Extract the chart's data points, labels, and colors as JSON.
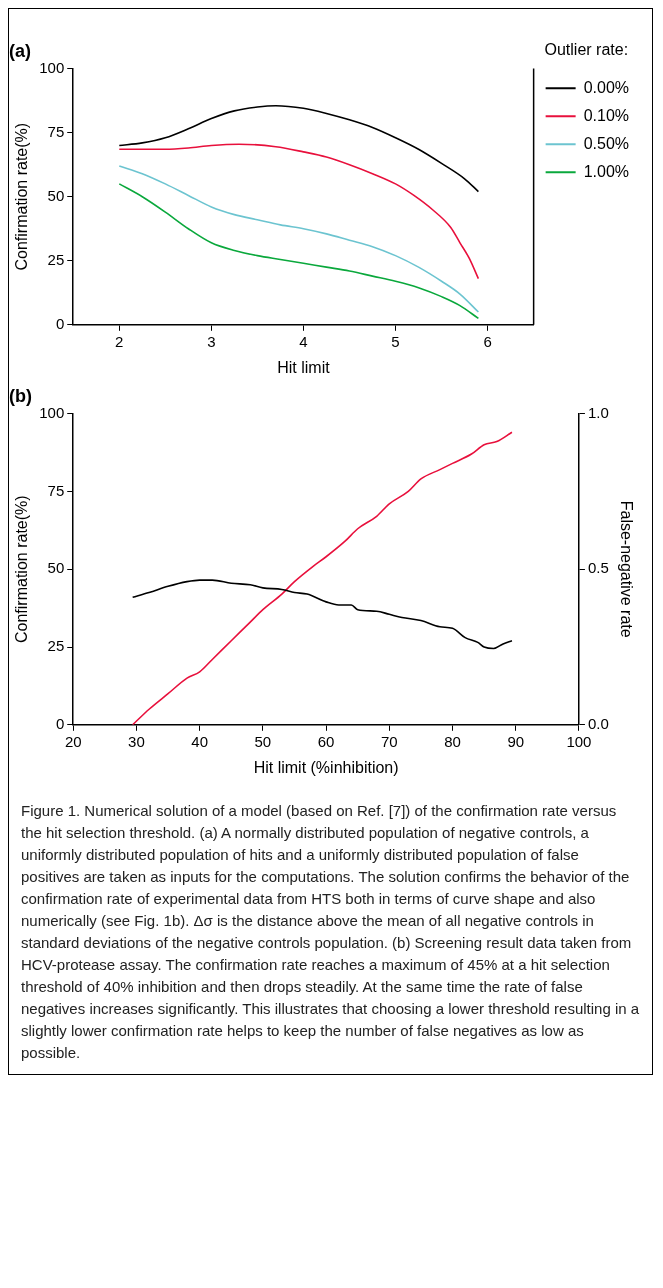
{
  "chart_data": [
    {
      "type": "line",
      "title": "(a)",
      "xlabel": "Hit limit",
      "ylabel": "Confirmation rate(%)",
      "legend_title": "Outlier rate:",
      "legend": "right",
      "grid": false,
      "xlim": [
        1.5,
        6.5
      ],
      "xticks": [
        2,
        3,
        4,
        5,
        6
      ],
      "ylim": [
        0,
        100
      ],
      "yticks": [
        0,
        25,
        50,
        75,
        100
      ],
      "series": [
        {
          "name": "0.00%",
          "color": "#000000",
          "x": [
            2,
            2.25,
            2.5,
            2.75,
            3,
            3.25,
            3.5,
            3.7,
            4,
            4.25,
            4.5,
            4.75,
            5,
            5.25,
            5.5,
            5.75,
            5.9
          ],
          "values": [
            70,
            71,
            73,
            76.5,
            80.5,
            83.5,
            85,
            85.5,
            84.5,
            82.5,
            80,
            77,
            73,
            68.5,
            63,
            57,
            52
          ]
        },
        {
          "name": "0.10%",
          "color": "#e8103c",
          "x": [
            2,
            2.25,
            2.5,
            2.75,
            3,
            3.3,
            3.7,
            4,
            4.25,
            4.5,
            4.75,
            5,
            5.2,
            5.4,
            5.6,
            5.7,
            5.8,
            5.9
          ],
          "values": [
            68.5,
            68.5,
            68.5,
            69,
            70,
            70.5,
            69.5,
            67.5,
            65.5,
            62.5,
            59,
            55,
            50.5,
            45,
            38,
            32,
            26,
            18
          ]
        },
        {
          "name": "0.50%",
          "color": "#6cc4d0",
          "x": [
            2,
            2.25,
            2.5,
            2.75,
            3,
            3.25,
            3.5,
            3.75,
            4,
            4.25,
            4.5,
            4.75,
            5,
            5.25,
            5.5,
            5.7,
            5.9
          ],
          "values": [
            62,
            59,
            55,
            50.5,
            46,
            43,
            41,
            39,
            37.5,
            35.5,
            33,
            30.5,
            27,
            22.5,
            17,
            12,
            5
          ]
        },
        {
          "name": "1.00%",
          "color": "#0aa83c",
          "x": [
            2,
            2.25,
            2.5,
            2.75,
            3,
            3.25,
            3.5,
            3.75,
            4,
            4.25,
            4.5,
            4.75,
            5,
            5.25,
            5.5,
            5.7,
            5.9
          ],
          "values": [
            55,
            50,
            44,
            37.5,
            32,
            29,
            27,
            25.5,
            24,
            22.5,
            21,
            19,
            17,
            14.5,
            11,
            7.5,
            2.5
          ]
        }
      ]
    },
    {
      "type": "line",
      "title": "(b)",
      "xlabel": "Hit limit (%inhibition)",
      "ylabel": "Confirmation rate(%)",
      "y2label": "False-negative rate",
      "grid": false,
      "xlim": [
        20,
        100
      ],
      "xticks": [
        20,
        30,
        40,
        50,
        60,
        70,
        80,
        90,
        100
      ],
      "ylim": [
        0,
        100
      ],
      "yticks": [
        0,
        25,
        50,
        75,
        100
      ],
      "y2lim": [
        0,
        1
      ],
      "y2ticks": [
        {
          "value": 0,
          "label": "0.0"
        },
        {
          "value": 0.5,
          "label": "0.5"
        },
        {
          "value": 1,
          "label": "1.0"
        }
      ],
      "series": [
        {
          "color": "#000000",
          "x": [
            29.4,
            32,
            35,
            38,
            40,
            42,
            45,
            48,
            50,
            53,
            55,
            57,
            60,
            62,
            64,
            65,
            68,
            70,
            72,
            75,
            78,
            80,
            82,
            84,
            85,
            86.5,
            88,
            89.4
          ],
          "values": [
            41,
            42.5,
            44.5,
            46,
            46.5,
            46.5,
            45.5,
            45,
            44,
            43.5,
            42.5,
            42,
            39.5,
            38.5,
            38.5,
            37,
            36.5,
            35.5,
            34.5,
            33.5,
            31.5,
            31,
            28,
            26.5,
            25,
            24.5,
            26,
            27
          ]
        },
        {
          "color": "#e8103c",
          "axis": "y2",
          "x": [
            29.4,
            32,
            35,
            38,
            40,
            42,
            45,
            48,
            50,
            53,
            55,
            58,
            60,
            63,
            65,
            68,
            70,
            73,
            75,
            78,
            80,
            83,
            85,
            87,
            89.4
          ],
          "values": [
            0,
            0.05,
            0.1,
            0.15,
            0.17,
            0.21,
            0.27,
            0.33,
            0.37,
            0.42,
            0.46,
            0.51,
            0.54,
            0.59,
            0.63,
            0.67,
            0.71,
            0.75,
            0.79,
            0.82,
            0.84,
            0.87,
            0.9,
            0.91,
            0.94
          ]
        }
      ],
      "annotations": [
        "Figure 1. Numerical solution of a model (based on Ref. [7]) of the confirmation rate versus the hit selection threshold. (a) A normally distributed population of negative controls, a uniformly distributed population of hits and a uniformly distributed population of false positives are taken as inputs for the computations. The solution confirms the behavior of the confirmation rate of experimental data from HTS both in terms of curve shape and also numerically (see Fig. 1b). Δσ is the distance above the mean of all negative controls in standard deviations of the negative controls population. (b) Screening result data taken from HCV-protease assay. The confirmation rate reaches a maximum of 45% at a hit selection threshold of 40% inhibition and then drops steadily. At the same time the rate of false negatives increases significantly. This illustrates that choosing a lower threshold resulting in a slightly lower confirmation rate helps to keep the number of false negatives as low as possible."
      ]
    }
  ]
}
